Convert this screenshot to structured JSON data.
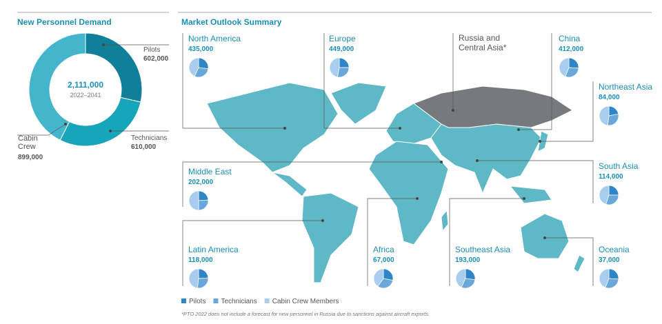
{
  "chart_data": [
    {
      "type": "donut",
      "title": "New Personnel Demand",
      "categories": [
        "Pilots",
        "Technicians",
        "Cabin Crew"
      ],
      "values": [
        602000,
        610000,
        899000
      ],
      "value_labels": [
        "602,000",
        "610,000",
        "899,000"
      ],
      "colors": [
        "#0f7f9a",
        "#17a5b9",
        "#45b5cc"
      ],
      "center_label": "2,111,000",
      "center_sublabel": "2022–2041"
    },
    {
      "type": "map-pies",
      "title": "Market Outlook Summary",
      "series": [
        {
          "name": "Pilots",
          "color": "#2f86c6"
        },
        {
          "name": "Technicians",
          "color": "#6aa8dc"
        },
        {
          "name": "Cabin Crew Members",
          "color": "#a9cdee"
        }
      ],
      "regions": [
        {
          "name": "North America",
          "total": 435000,
          "total_label": "435,000",
          "values": [
            27,
            30,
            43
          ]
        },
        {
          "name": "Europe",
          "total": 449000,
          "total_label": "449,000",
          "values": [
            25,
            28,
            47
          ]
        },
        {
          "name": "Russia and Central Asia*"
        },
        {
          "name": "China",
          "total": 412000,
          "total_label": "412,000",
          "values": [
            26,
            30,
            44
          ]
        },
        {
          "name": "Northeast Asia",
          "total": 84000,
          "total_label": "84,000",
          "values": [
            22,
            30,
            48
          ]
        },
        {
          "name": "Middle East",
          "total": 202000,
          "total_label": "202,000",
          "values": [
            24,
            26,
            50
          ]
        },
        {
          "name": "South Asia",
          "total": 114000,
          "total_label": "114,000",
          "values": [
            25,
            30,
            45
          ]
        },
        {
          "name": "Latin America",
          "total": 118000,
          "total_label": "118,000",
          "values": [
            24,
            28,
            48
          ]
        },
        {
          "name": "Africa",
          "total": 67000,
          "total_label": "67,000",
          "values": [
            28,
            32,
            40
          ]
        },
        {
          "name": "Southeast Asia",
          "total": 193000,
          "total_label": "193,000",
          "values": [
            27,
            30,
            43
          ]
        },
        {
          "name": "Oceania",
          "total": 37000,
          "total_label": "37,000",
          "values": [
            26,
            30,
            44
          ]
        }
      ],
      "footnote": "*PTO 2022 does not include a forecast for new personnel in Russia due to sanctions against aircraft exports."
    }
  ]
}
